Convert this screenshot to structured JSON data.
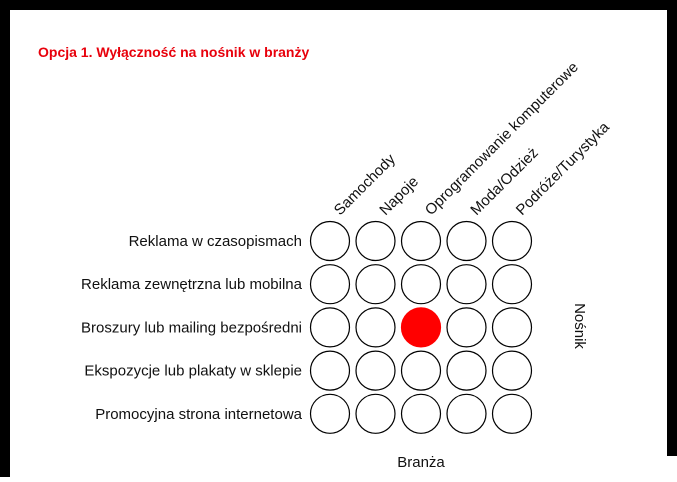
{
  "title": "Opcja 1. Wyłączność na nośnik w branży",
  "columns": [
    "Samochody",
    "Napoje",
    "Oprogramowanie komputerowe",
    "Moda/Odzież",
    "Podróże/Turystyka"
  ],
  "rows": [
    "Reklama w czasopismach",
    "Reklama zewnętrzna lub mobilna",
    "Broszury lub mailing bezpośredni",
    "Ekspozycje lub plakaty w sklepie",
    "Promocyjna strona internetowa"
  ],
  "row_axis_label": "Nośnik",
  "column_axis_label": "Branża",
  "selected": {
    "row": 2,
    "column": 2
  }
}
